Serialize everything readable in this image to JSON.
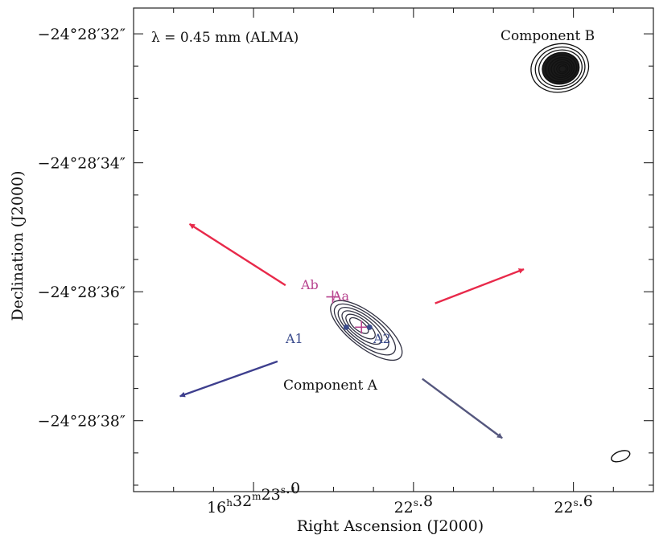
{
  "chart_data": {
    "type": "contour",
    "title": "",
    "xlabel": "Right Ascension (J2000)",
    "ylabel": "Declination (J2000)",
    "xlim_ra_seconds": [
      23.15,
      22.5
    ],
    "ylim_dec_arcsec": [
      39.1,
      31.6
    ],
    "x_ticks": [
      {
        "value": 23.0,
        "label_h": "16",
        "label_m": "32",
        "label_s": "23.0"
      },
      {
        "value": 22.8,
        "label_h": "",
        "label_m": "",
        "label_s": "22.8"
      },
      {
        "value": 22.6,
        "label_h": "",
        "label_m": "",
        "label_s": "22.6"
      }
    ],
    "y_ticks": [
      {
        "value": 32,
        "label": "−24°28′32″"
      },
      {
        "value": 34,
        "label": "−24°28′34″"
      },
      {
        "value": 36,
        "label": "−24°28′36″"
      },
      {
        "value": 38,
        "label": "−24°28′38″"
      }
    ],
    "annotations": {
      "wavelength": "λ = 0.45 mm (ALMA)",
      "component_a": "Component A",
      "component_b": "Component B",
      "ab": "Ab",
      "aa": "Aa",
      "a1": "A1",
      "a2": "A2"
    },
    "sources": [
      {
        "name": "Component B",
        "ra_s": 22.617,
        "dec_arcsec": 32.53,
        "peak": "strong"
      },
      {
        "name": "Component A",
        "ra_s": 22.865,
        "dec_arcsec": 36.55,
        "peak": "moderate"
      }
    ],
    "stars": [
      {
        "name": "Ab",
        "ra_s": 22.901,
        "dec_arcsec": 36.08,
        "color": "#b8448f"
      },
      {
        "name": "Aa",
        "ra_s": 22.865,
        "dec_arcsec": 36.55,
        "color": "#b8448f"
      },
      {
        "name": "A1",
        "ra_s": 22.884,
        "dec_arcsec": 36.55,
        "color": "#3a4b8c"
      },
      {
        "name": "A2",
        "ra_s": 22.855,
        "dec_arcsec": 36.55,
        "color": "#3a4b8c"
      }
    ],
    "outflow_arrows": [
      {
        "lobe": "red",
        "color": "#e8294a",
        "from": [
          22.96,
          35.9
        ],
        "to": [
          23.08,
          34.95
        ]
      },
      {
        "lobe": "red",
        "color": "#e8294a",
        "from": [
          22.773,
          36.18
        ],
        "to": [
          22.662,
          35.65
        ]
      },
      {
        "lobe": "blue",
        "color": "#3e3f8e",
        "from": [
          22.97,
          37.08
        ],
        "to": [
          23.092,
          37.62
        ]
      },
      {
        "lobe": "blue",
        "color": "#55577e",
        "from": [
          22.789,
          37.35
        ],
        "to": [
          22.689,
          38.27
        ]
      }
    ],
    "beam": {
      "ra_s": 22.541,
      "dec_arcsec": 38.55
    },
    "grid": false,
    "legend": "none"
  }
}
